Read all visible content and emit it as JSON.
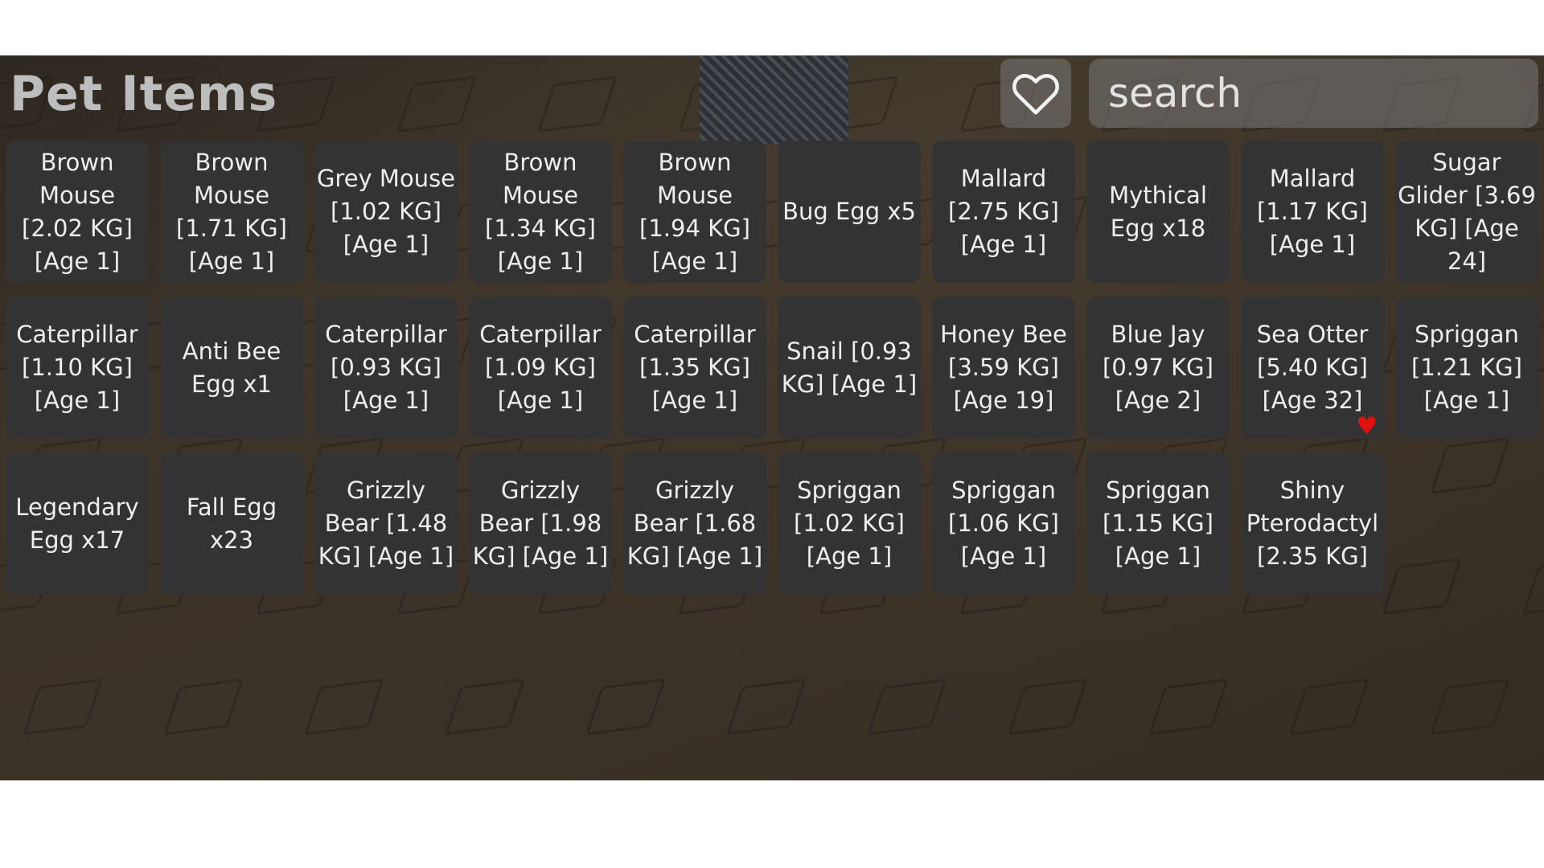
{
  "title": "Pet Items",
  "search": {
    "placeholder": "search",
    "value": ""
  },
  "favorites_button": {
    "icon": "heart-outline-icon"
  },
  "items": [
    {
      "label": "Brown Mouse [2.02 KG] [Age 1]",
      "favorited": false
    },
    {
      "label": "Brown Mouse [1.71 KG] [Age 1]",
      "favorited": false
    },
    {
      "label": "Grey Mouse [1.02 KG] [Age 1]",
      "favorited": false
    },
    {
      "label": "Brown Mouse [1.34 KG] [Age 1]",
      "favorited": false
    },
    {
      "label": "Brown Mouse [1.94 KG] [Age 1]",
      "favorited": false
    },
    {
      "label": "Bug Egg x5",
      "favorited": false
    },
    {
      "label": "Mallard [2.75 KG] [Age 1]",
      "favorited": false
    },
    {
      "label": "Mythical Egg x18",
      "favorited": false
    },
    {
      "label": "Mallard [1.17 KG] [Age 1]",
      "favorited": false
    },
    {
      "label": "Sugar Glider [3.69 KG] [Age 24]",
      "favorited": false
    },
    {
      "label": "Caterpillar [1.10 KG] [Age 1]",
      "favorited": false
    },
    {
      "label": "Anti Bee Egg x1",
      "favorited": false
    },
    {
      "label": "Caterpillar [0.93 KG] [Age 1]",
      "favorited": false
    },
    {
      "label": "Caterpillar [1.09 KG] [Age 1]",
      "favorited": false
    },
    {
      "label": "Caterpillar [1.35 KG] [Age 1]",
      "favorited": false
    },
    {
      "label": "Snail [0.93 KG] [Age 1]",
      "favorited": false
    },
    {
      "label": "Honey Bee [3.59 KG] [Age 19]",
      "favorited": false
    },
    {
      "label": "Blue Jay [0.97 KG] [Age 2]",
      "favorited": false
    },
    {
      "label": "Sea Otter [5.40 KG] [Age 32]",
      "favorited": true
    },
    {
      "label": "Spriggan [1.21 KG] [Age 1]",
      "favorited": false
    },
    {
      "label": "Legendary Egg x17",
      "favorited": false
    },
    {
      "label": "Fall Egg x23",
      "favorited": false
    },
    {
      "label": "Grizzly Bear [1.48 KG] [Age 1]",
      "favorited": false
    },
    {
      "label": "Grizzly Bear [1.98 KG] [Age 1]",
      "favorited": false
    },
    {
      "label": "Grizzly Bear [1.68 KG] [Age 1]",
      "favorited": false
    },
    {
      "label": "Spriggan [1.02 KG] [Age 1]",
      "favorited": false
    },
    {
      "label": "Spriggan [1.06 KG] [Age 1]",
      "favorited": false
    },
    {
      "label": "Spriggan [1.15 KG] [Age 1]",
      "favorited": false
    },
    {
      "label": "Shiny Pterodactyl [2.35 KG]",
      "favorited": false
    }
  ],
  "colors": {
    "card": "#333333",
    "favorite_heart": "#e01010",
    "title": "#bdbdbd"
  }
}
